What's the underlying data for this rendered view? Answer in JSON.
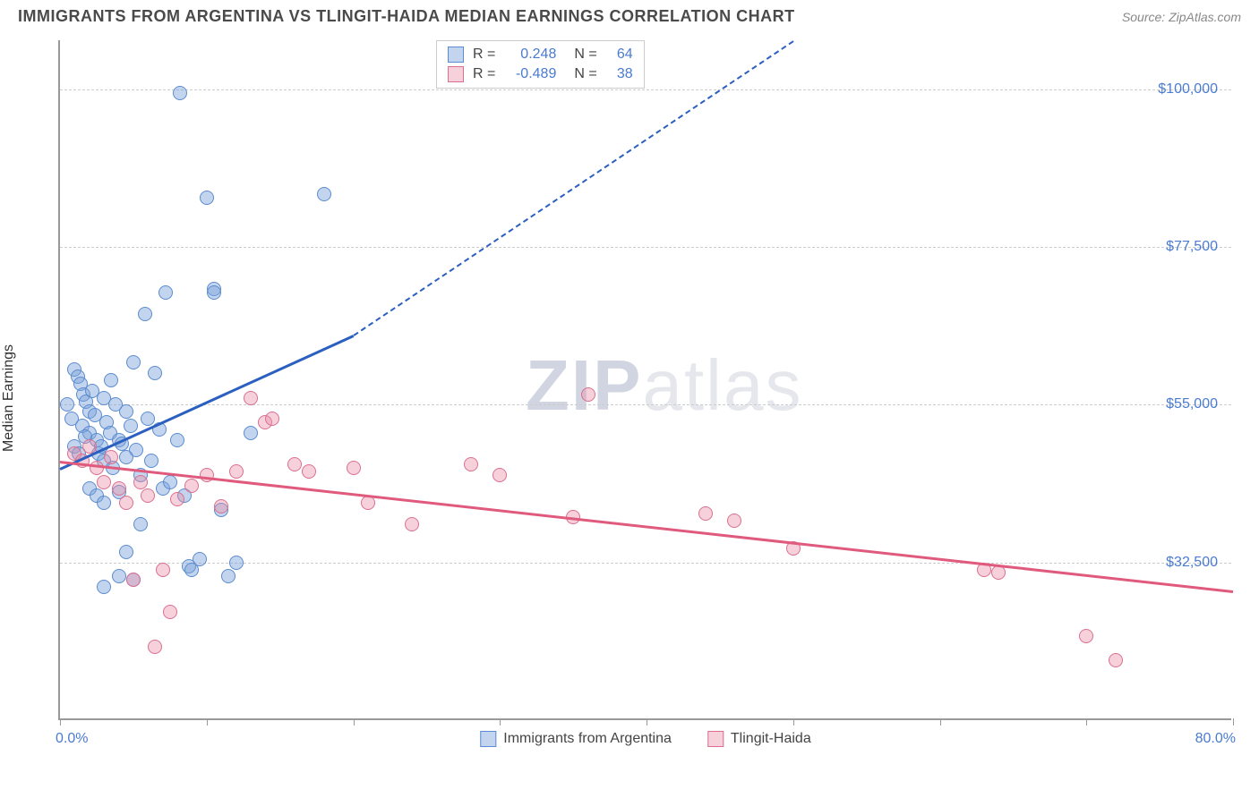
{
  "header": {
    "title": "IMMIGRANTS FROM ARGENTINA VS TLINGIT-HAIDA MEDIAN EARNINGS CORRELATION CHART",
    "source": "Source: ZipAtlas.com"
  },
  "chart": {
    "type": "scatter",
    "ylabel": "Median Earnings",
    "xlim": [
      0,
      80
    ],
    "ylim": [
      10000,
      107000
    ],
    "x_tick_positions": [
      0,
      10,
      20,
      30,
      40,
      50,
      60,
      70,
      80
    ],
    "x_tick_label_left": "0.0%",
    "x_tick_label_right": "80.0%",
    "y_ticks": [
      {
        "value": 32500,
        "label": "$32,500"
      },
      {
        "value": 55000,
        "label": "$55,000"
      },
      {
        "value": 77500,
        "label": "$77,500"
      },
      {
        "value": 100000,
        "label": "$100,000"
      }
    ],
    "grid_color": "#cccccc",
    "axis_color": "#999999",
    "background_color": "#ffffff",
    "tick_label_color": "#4a7bd0",
    "series": [
      {
        "name": "Immigrants from Argentina",
        "color_fill": "rgba(122,162,217,0.45)",
        "color_stroke": "#5b8bd0",
        "trend_color": "#2b5fc0",
        "trend": {
          "x1": 0,
          "y1": 46000,
          "x2_solid": 20,
          "y2_solid": 65000,
          "x2_dash": 50,
          "y2_dash": 107000
        },
        "points": [
          [
            0.5,
            55000
          ],
          [
            0.8,
            53000
          ],
          [
            1.0,
            60000
          ],
          [
            1.2,
            59000
          ],
          [
            1.4,
            58000
          ],
          [
            1.5,
            52000
          ],
          [
            1.6,
            56500
          ],
          [
            1.8,
            55500
          ],
          [
            2.0,
            54000
          ],
          [
            2.0,
            51000
          ],
          [
            2.2,
            57000
          ],
          [
            2.4,
            53500
          ],
          [
            2.5,
            50000
          ],
          [
            2.6,
            48000
          ],
          [
            2.8,
            49000
          ],
          [
            3.0,
            56000
          ],
          [
            3.0,
            47000
          ],
          [
            3.2,
            52500
          ],
          [
            3.4,
            51000
          ],
          [
            3.5,
            58500
          ],
          [
            3.6,
            46000
          ],
          [
            3.8,
            55000
          ],
          [
            4.0,
            50000
          ],
          [
            4.2,
            49500
          ],
          [
            4.5,
            54000
          ],
          [
            4.8,
            52000
          ],
          [
            5.0,
            61000
          ],
          [
            5.2,
            48500
          ],
          [
            5.5,
            45000
          ],
          [
            5.8,
            68000
          ],
          [
            6.0,
            53000
          ],
          [
            6.2,
            47000
          ],
          [
            6.5,
            59500
          ],
          [
            6.8,
            51500
          ],
          [
            7.0,
            43000
          ],
          [
            7.2,
            71000
          ],
          [
            7.5,
            44000
          ],
          [
            8.0,
            50000
          ],
          [
            8.2,
            99500
          ],
          [
            8.5,
            42000
          ],
          [
            8.8,
            32000
          ],
          [
            9.0,
            31500
          ],
          [
            9.5,
            33000
          ],
          [
            10.0,
            84500
          ],
          [
            10.5,
            71500
          ],
          [
            10.5,
            71000
          ],
          [
            11.0,
            40000
          ],
          [
            11.5,
            30500
          ],
          [
            12.0,
            32500
          ],
          [
            2.0,
            43000
          ],
          [
            2.5,
            42000
          ],
          [
            3.0,
            41000
          ],
          [
            4.0,
            42500
          ],
          [
            4.5,
            47500
          ],
          [
            5.0,
            30000
          ],
          [
            5.5,
            38000
          ],
          [
            1.0,
            49000
          ],
          [
            1.3,
            48000
          ],
          [
            1.7,
            50500
          ],
          [
            13.0,
            51000
          ],
          [
            4.0,
            30500
          ],
          [
            3.0,
            29000
          ],
          [
            4.5,
            34000
          ],
          [
            18.0,
            85000
          ]
        ]
      },
      {
        "name": "Tlingit-Haida",
        "color_fill": "rgba(233,140,165,0.40)",
        "color_stroke": "#db6f8f",
        "trend_color": "#e05a7d",
        "trend": {
          "x1": 0,
          "y1": 47000,
          "x2_solid": 80,
          "y2_solid": 28500
        },
        "points": [
          [
            1.0,
            48000
          ],
          [
            1.5,
            47000
          ],
          [
            2.0,
            49000
          ],
          [
            2.5,
            46000
          ],
          [
            3.0,
            44000
          ],
          [
            3.5,
            47500
          ],
          [
            4.0,
            43000
          ],
          [
            4.5,
            41000
          ],
          [
            5.0,
            30000
          ],
          [
            5.5,
            44000
          ],
          [
            6.0,
            42000
          ],
          [
            6.5,
            20500
          ],
          [
            7.0,
            31500
          ],
          [
            7.5,
            25500
          ],
          [
            8.0,
            41500
          ],
          [
            9.0,
            43500
          ],
          [
            10.0,
            45000
          ],
          [
            11.0,
            40500
          ],
          [
            12.0,
            45500
          ],
          [
            13.0,
            56000
          ],
          [
            14.0,
            52500
          ],
          [
            14.5,
            53000
          ],
          [
            16.0,
            46500
          ],
          [
            17.0,
            45500
          ],
          [
            20.0,
            46000
          ],
          [
            21.0,
            41000
          ],
          [
            24.0,
            38000
          ],
          [
            28.0,
            46500
          ],
          [
            30.0,
            45000
          ],
          [
            35.0,
            39000
          ],
          [
            36.0,
            56500
          ],
          [
            44.0,
            39500
          ],
          [
            46.0,
            38500
          ],
          [
            50.0,
            34500
          ],
          [
            63.0,
            31500
          ],
          [
            64.0,
            31000
          ],
          [
            70.0,
            22000
          ],
          [
            72.0,
            18500
          ]
        ]
      }
    ],
    "legend_bottom": [
      {
        "label": "Immigrants from Argentina",
        "fill": "rgba(122,162,217,0.45)",
        "stroke": "#5b8bd0"
      },
      {
        "label": "Tlingit-Haida",
        "fill": "rgba(233,140,165,0.40)",
        "stroke": "#db6f8f"
      }
    ],
    "stats_box": {
      "rows": [
        {
          "fill": "rgba(122,162,217,0.45)",
          "stroke": "#5b8bd0",
          "r_label": "R =",
          "r_value": "0.248",
          "n_label": "N =",
          "n_value": "64"
        },
        {
          "fill": "rgba(233,140,165,0.40)",
          "stroke": "#db6f8f",
          "r_label": "R =",
          "r_value": "-0.489",
          "n_label": "N =",
          "n_value": "38"
        }
      ]
    },
    "watermark": "ZIPatlas"
  }
}
